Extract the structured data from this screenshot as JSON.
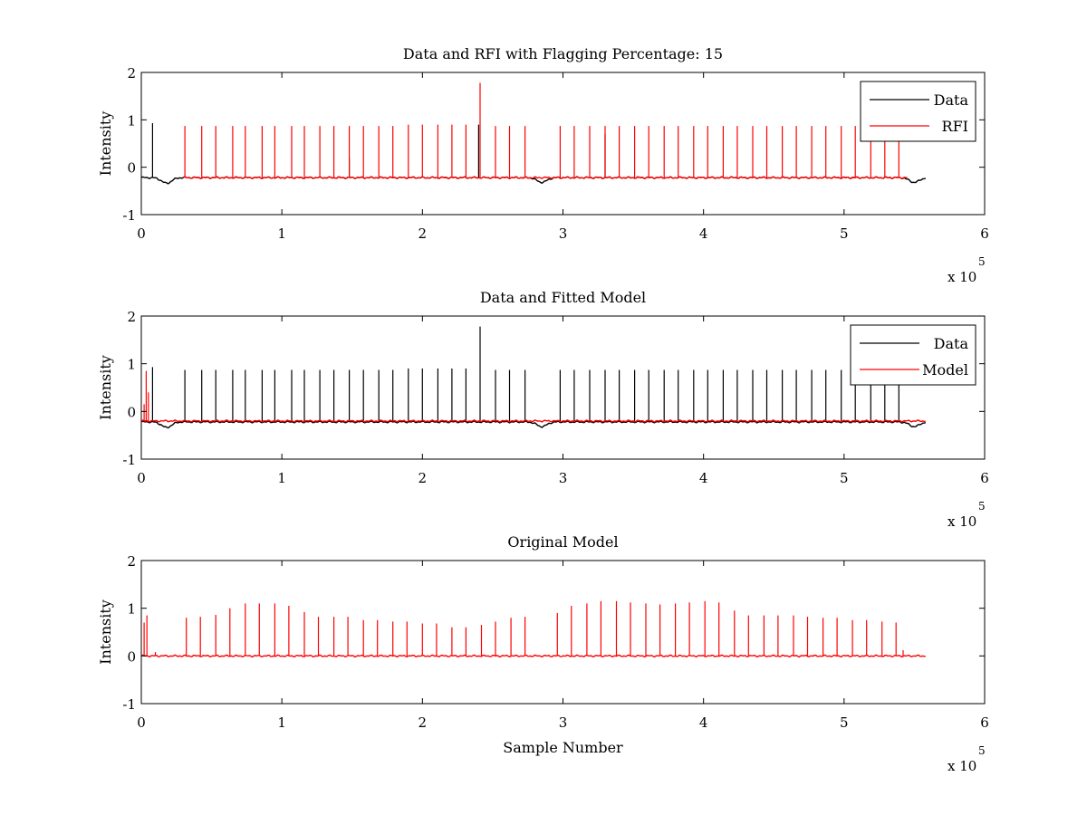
{
  "figure": {
    "background": "#ffffff",
    "colors": {
      "data": "#000000",
      "rfi": "#ff0000",
      "model": "#ff0000"
    }
  },
  "chart_data": [
    {
      "type": "line",
      "title": "Data and RFI with Flagging Percentage: 15",
      "xlabel": "",
      "ylabel": "Intensity",
      "xlim": [
        0,
        6
      ],
      "ylim": [
        -1,
        2
      ],
      "xticks": [
        "0",
        "1",
        "2",
        "3",
        "4",
        "5",
        "6"
      ],
      "yticks": [
        "-1",
        "0",
        "1",
        "2"
      ],
      "exponent_base": "x 10",
      "exponent_power": "5",
      "x_units_scale": 100000,
      "legend": {
        "position": "top-right",
        "entries": [
          "Data",
          "RFI"
        ]
      },
      "series": [
        {
          "name": "Data",
          "color": "#000000",
          "baseline": -0.22,
          "x_end": 5.58,
          "dips": [
            {
              "x": 0.18,
              "depth": -0.35
            },
            {
              "x": 2.85,
              "depth": -0.33
            },
            {
              "x": 5.5,
              "depth": -0.33
            }
          ],
          "spikes": [
            {
              "x": 0.08,
              "y": 0.93
            },
            {
              "x": 1.48,
              "y": 0.2
            },
            {
              "x": 2.4,
              "y": 0.9
            },
            {
              "x": 3.3,
              "y": 0.7
            }
          ]
        },
        {
          "name": "RFI",
          "color": "#ff0000",
          "baseline": -0.22,
          "x_range": [
            0.3,
            5.45
          ],
          "spikes": [
            {
              "x": 0.31,
              "y": 0.87
            },
            {
              "x": 0.43,
              "y": 0.87
            },
            {
              "x": 0.53,
              "y": 0.87
            },
            {
              "x": 0.65,
              "y": 0.87
            },
            {
              "x": 0.74,
              "y": 0.87
            },
            {
              "x": 0.86,
              "y": 0.87
            },
            {
              "x": 0.95,
              "y": 0.87
            },
            {
              "x": 1.07,
              "y": 0.87
            },
            {
              "x": 1.16,
              "y": 0.87
            },
            {
              "x": 1.27,
              "y": 0.87
            },
            {
              "x": 1.37,
              "y": 0.87
            },
            {
              "x": 1.48,
              "y": 0.87
            },
            {
              "x": 1.58,
              "y": 0.87
            },
            {
              "x": 1.69,
              "y": 0.87
            },
            {
              "x": 1.79,
              "y": 0.87
            },
            {
              "x": 1.9,
              "y": 0.9
            },
            {
              "x": 2.0,
              "y": 0.9
            },
            {
              "x": 2.11,
              "y": 0.9
            },
            {
              "x": 2.21,
              "y": 0.9
            },
            {
              "x": 2.31,
              "y": 0.9
            },
            {
              "x": 2.41,
              "y": 1.78
            },
            {
              "x": 2.52,
              "y": 0.87
            },
            {
              "x": 2.62,
              "y": 0.87
            },
            {
              "x": 2.73,
              "y": 0.87
            },
            {
              "x": 2.98,
              "y": 0.87
            },
            {
              "x": 3.08,
              "y": 0.87
            },
            {
              "x": 3.19,
              "y": 0.87
            },
            {
              "x": 3.3,
              "y": 0.87
            },
            {
              "x": 3.4,
              "y": 0.87
            },
            {
              "x": 3.51,
              "y": 0.87
            },
            {
              "x": 3.61,
              "y": 0.87
            },
            {
              "x": 3.72,
              "y": 0.87
            },
            {
              "x": 3.82,
              "y": 0.87
            },
            {
              "x": 3.93,
              "y": 0.87
            },
            {
              "x": 4.03,
              "y": 0.87
            },
            {
              "x": 4.14,
              "y": 0.87
            },
            {
              "x": 4.24,
              "y": 0.87
            },
            {
              "x": 4.35,
              "y": 0.87
            },
            {
              "x": 4.45,
              "y": 0.87
            },
            {
              "x": 4.56,
              "y": 0.87
            },
            {
              "x": 4.66,
              "y": 0.87
            },
            {
              "x": 4.77,
              "y": 0.87
            },
            {
              "x": 4.87,
              "y": 0.87
            },
            {
              "x": 4.98,
              "y": 0.87
            },
            {
              "x": 5.08,
              "y": 0.87
            },
            {
              "x": 5.19,
              "y": 0.87
            },
            {
              "x": 5.29,
              "y": 0.87
            },
            {
              "x": 5.39,
              "y": 0.87
            }
          ]
        }
      ]
    },
    {
      "type": "line",
      "title": "Data and Fitted Model",
      "xlabel": "",
      "ylabel": "Intensity",
      "xlim": [
        0,
        6
      ],
      "ylim": [
        -1,
        2
      ],
      "xticks": [
        "0",
        "1",
        "2",
        "3",
        "4",
        "5",
        "6"
      ],
      "yticks": [
        "-1",
        "0",
        "1",
        "2"
      ],
      "exponent_base": "x 10",
      "exponent_power": "5",
      "x_units_scale": 100000,
      "legend": {
        "position": "top-right",
        "entries": [
          "Data",
          "Model"
        ]
      },
      "series": [
        {
          "name": "Data",
          "color": "#000000",
          "baseline": -0.22,
          "x_end": 5.58,
          "dips": [
            {
              "x": 0.18,
              "depth": -0.35
            },
            {
              "x": 2.85,
              "depth": -0.33
            },
            {
              "x": 5.5,
              "depth": -0.33
            }
          ],
          "spikes": [
            {
              "x": 0.08,
              "y": 0.93
            },
            {
              "x": 0.31,
              "y": 0.87
            },
            {
              "x": 0.43,
              "y": 0.87
            },
            {
              "x": 0.53,
              "y": 0.87
            },
            {
              "x": 0.65,
              "y": 0.87
            },
            {
              "x": 0.74,
              "y": 0.87
            },
            {
              "x": 0.86,
              "y": 0.87
            },
            {
              "x": 0.95,
              "y": 0.87
            },
            {
              "x": 1.07,
              "y": 0.87
            },
            {
              "x": 1.16,
              "y": 0.87
            },
            {
              "x": 1.27,
              "y": 0.87
            },
            {
              "x": 1.37,
              "y": 0.87
            },
            {
              "x": 1.48,
              "y": 0.87
            },
            {
              "x": 1.58,
              "y": 0.87
            },
            {
              "x": 1.69,
              "y": 0.87
            },
            {
              "x": 1.79,
              "y": 0.87
            },
            {
              "x": 1.9,
              "y": 0.9
            },
            {
              "x": 2.0,
              "y": 0.9
            },
            {
              "x": 2.11,
              "y": 0.9
            },
            {
              "x": 2.21,
              "y": 0.9
            },
            {
              "x": 2.31,
              "y": 0.9
            },
            {
              "x": 2.41,
              "y": 1.78
            },
            {
              "x": 2.52,
              "y": 0.87
            },
            {
              "x": 2.62,
              "y": 0.87
            },
            {
              "x": 2.73,
              "y": 0.87
            },
            {
              "x": 2.98,
              "y": 0.87
            },
            {
              "x": 3.08,
              "y": 0.87
            },
            {
              "x": 3.19,
              "y": 0.87
            },
            {
              "x": 3.3,
              "y": 0.87
            },
            {
              "x": 3.4,
              "y": 0.87
            },
            {
              "x": 3.51,
              "y": 0.87
            },
            {
              "x": 3.61,
              "y": 0.87
            },
            {
              "x": 3.72,
              "y": 0.87
            },
            {
              "x": 3.82,
              "y": 0.87
            },
            {
              "x": 3.93,
              "y": 0.87
            },
            {
              "x": 4.03,
              "y": 0.87
            },
            {
              "x": 4.14,
              "y": 0.87
            },
            {
              "x": 4.24,
              "y": 0.87
            },
            {
              "x": 4.35,
              "y": 0.87
            },
            {
              "x": 4.45,
              "y": 0.87
            },
            {
              "x": 4.56,
              "y": 0.87
            },
            {
              "x": 4.66,
              "y": 0.87
            },
            {
              "x": 4.77,
              "y": 0.87
            },
            {
              "x": 4.87,
              "y": 0.87
            },
            {
              "x": 4.98,
              "y": 0.87
            },
            {
              "x": 5.08,
              "y": 0.87
            },
            {
              "x": 5.19,
              "y": 0.87
            },
            {
              "x": 5.29,
              "y": 0.87
            },
            {
              "x": 5.39,
              "y": 0.87
            }
          ]
        },
        {
          "name": "Model",
          "color": "#ff0000",
          "baseline": -0.2,
          "x_end": 5.58,
          "spikes": [
            {
              "x": 0.02,
              "y": 0.15
            },
            {
              "x": 0.035,
              "y": 0.85
            },
            {
              "x": 0.05,
              "y": 0.4
            }
          ]
        }
      ]
    },
    {
      "type": "line",
      "title": "Original Model",
      "xlabel": "Sample Number",
      "ylabel": "Intensity",
      "xlim": [
        0,
        6
      ],
      "ylim": [
        -1,
        2
      ],
      "xticks": [
        "0",
        "1",
        "2",
        "3",
        "4",
        "5",
        "6"
      ],
      "yticks": [
        "-1",
        "0",
        "1",
        "2"
      ],
      "exponent_base": "x 10",
      "exponent_power": "5",
      "x_units_scale": 100000,
      "series": [
        {
          "name": "",
          "color": "#ff0000",
          "baseline": 0,
          "x_end": 5.58,
          "spikes": [
            {
              "x": 0.02,
              "y": 0.7
            },
            {
              "x": 0.04,
              "y": 0.85
            },
            {
              "x": 0.1,
              "y": 0.08
            },
            {
              "x": 0.32,
              "y": 0.8
            },
            {
              "x": 0.42,
              "y": 0.82
            },
            {
              "x": 0.53,
              "y": 0.86
            },
            {
              "x": 0.63,
              "y": 1.0
            },
            {
              "x": 0.74,
              "y": 1.1
            },
            {
              "x": 0.84,
              "y": 1.1
            },
            {
              "x": 0.95,
              "y": 1.1
            },
            {
              "x": 1.05,
              "y": 1.05
            },
            {
              "x": 1.16,
              "y": 0.92
            },
            {
              "x": 1.26,
              "y": 0.82
            },
            {
              "x": 1.37,
              "y": 0.82
            },
            {
              "x": 1.47,
              "y": 0.82
            },
            {
              "x": 1.58,
              "y": 0.75
            },
            {
              "x": 1.68,
              "y": 0.75
            },
            {
              "x": 1.79,
              "y": 0.72
            },
            {
              "x": 1.89,
              "y": 0.72
            },
            {
              "x": 2.0,
              "y": 0.68
            },
            {
              "x": 2.1,
              "y": 0.68
            },
            {
              "x": 2.21,
              "y": 0.6
            },
            {
              "x": 2.31,
              "y": 0.6
            },
            {
              "x": 2.42,
              "y": 0.65
            },
            {
              "x": 2.52,
              "y": 0.72
            },
            {
              "x": 2.63,
              "y": 0.8
            },
            {
              "x": 2.73,
              "y": 0.82
            },
            {
              "x": 2.96,
              "y": 0.9
            },
            {
              "x": 3.06,
              "y": 1.05
            },
            {
              "x": 3.17,
              "y": 1.1
            },
            {
              "x": 3.27,
              "y": 1.15
            },
            {
              "x": 3.38,
              "y": 1.15
            },
            {
              "x": 3.48,
              "y": 1.12
            },
            {
              "x": 3.59,
              "y": 1.1
            },
            {
              "x": 3.69,
              "y": 1.08
            },
            {
              "x": 3.8,
              "y": 1.1
            },
            {
              "x": 3.9,
              "y": 1.12
            },
            {
              "x": 4.01,
              "y": 1.15
            },
            {
              "x": 4.11,
              "y": 1.12
            },
            {
              "x": 4.22,
              "y": 0.95
            },
            {
              "x": 4.32,
              "y": 0.85
            },
            {
              "x": 4.43,
              "y": 0.85
            },
            {
              "x": 4.53,
              "y": 0.85
            },
            {
              "x": 4.64,
              "y": 0.85
            },
            {
              "x": 4.74,
              "y": 0.82
            },
            {
              "x": 4.85,
              "y": 0.8
            },
            {
              "x": 4.95,
              "y": 0.8
            },
            {
              "x": 5.06,
              "y": 0.75
            },
            {
              "x": 5.16,
              "y": 0.75
            },
            {
              "x": 5.27,
              "y": 0.72
            },
            {
              "x": 5.37,
              "y": 0.7
            },
            {
              "x": 5.42,
              "y": 0.12
            }
          ]
        }
      ]
    }
  ]
}
